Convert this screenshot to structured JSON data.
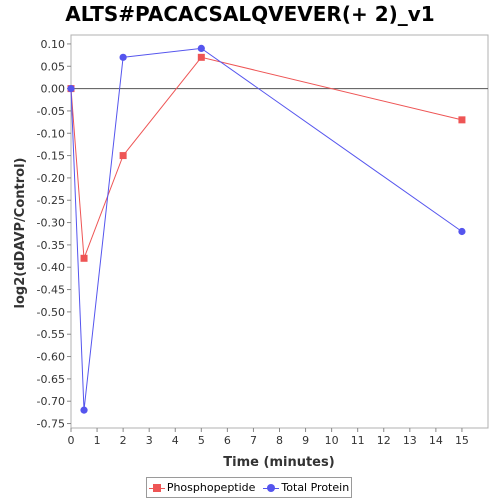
{
  "chart_data": {
    "type": "line",
    "title": "ALTS#PACACSALQVEVER(+ 2)_v1",
    "xlabel": "Time (minutes)",
    "ylabel": "log2(dDAVP/Control)",
    "xlim": [
      0,
      16
    ],
    "ylim": [
      -0.76,
      0.12
    ],
    "xticks": [
      0,
      1,
      2,
      3,
      4,
      5,
      6,
      7,
      8,
      9,
      10,
      11,
      12,
      13,
      14,
      15
    ],
    "yticks": [
      0.1,
      0.05,
      0.0,
      -0.05,
      -0.1,
      -0.15,
      -0.2,
      -0.25,
      -0.3,
      -0.35,
      -0.4,
      -0.45,
      -0.5,
      -0.55,
      -0.6,
      -0.65,
      -0.7,
      -0.75
    ],
    "grid": false,
    "zero_line": true,
    "legend_position": "bottom",
    "series": [
      {
        "name": "Phosphopeptide",
        "color": "#ee5555",
        "marker": "square",
        "x": [
          0,
          0.5,
          2,
          5,
          15
        ],
        "y": [
          0.0,
          -0.38,
          -0.15,
          0.07,
          -0.07
        ]
      },
      {
        "name": "Total Protein",
        "color": "#5555ee",
        "marker": "circle",
        "x": [
          0,
          0.5,
          2,
          5,
          15
        ],
        "y": [
          0.0,
          -0.72,
          0.07,
          0.09,
          -0.32
        ]
      }
    ]
  }
}
